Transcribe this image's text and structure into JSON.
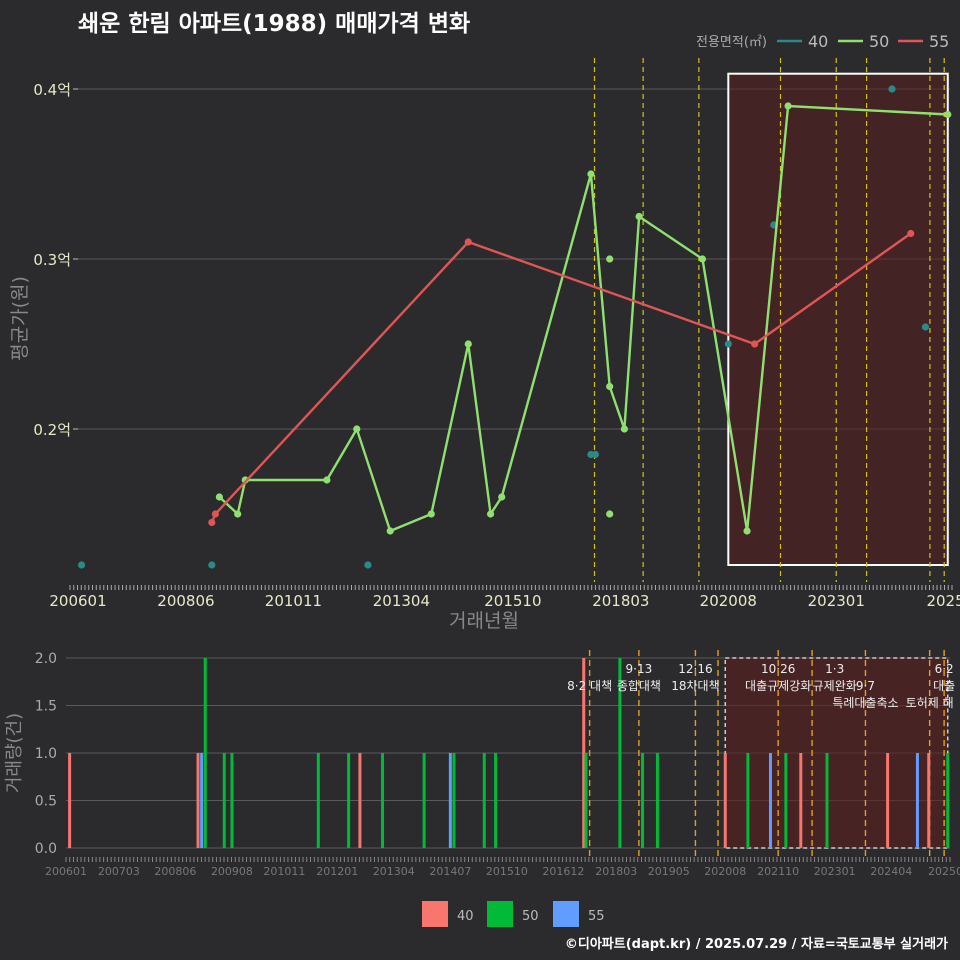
{
  "title": "쇄운 한림 아파트(1988) 매매가격 변화",
  "credit": "©디아파트(dapt.kr) / 2025.07.29 / 자료=국토교통부 실거래가",
  "colors": {
    "40": "#2a8a8a",
    "50": "#90e070",
    "55": "#e05555",
    "bar40": "#f8766d",
    "bar50": "#00ba38",
    "bar55": "#619cff"
  },
  "chart_data": [
    {
      "type": "line",
      "ylabel": "평균가(원)",
      "xlabel": "거래년월",
      "legend_title": "전용면적(㎡)",
      "legend": [
        "40",
        "50",
        "55"
      ],
      "legend_position": "top-right",
      "xlim": [
        2006.0,
        2025.55
      ],
      "ylim": [
        0.11,
        0.42
      ],
      "yticks": [
        {
          "v": 0.2,
          "label": "0.2억"
        },
        {
          "v": 0.3,
          "label": "0.3억"
        },
        {
          "v": 0.4,
          "label": "0.4억"
        }
      ],
      "xticks": [
        {
          "v": 2006.0,
          "label": "200601"
        },
        {
          "v": 2008.42,
          "label": "200806"
        },
        {
          "v": 2010.83,
          "label": "201011"
        },
        {
          "v": 2013.25,
          "label": "201304"
        },
        {
          "v": 2015.75,
          "label": "201510"
        },
        {
          "v": 2018.17,
          "label": "201803"
        },
        {
          "v": 2020.58,
          "label": "202008"
        },
        {
          "v": 2023.0,
          "label": "202301"
        },
        {
          "v": 2025.45,
          "label": "2025"
        }
      ],
      "highlight": {
        "x0": 2020.58,
        "x1": 2025.5,
        "y0": 0.12,
        "y1": 0.409
      },
      "vlines": [
        2017.58,
        2018.67,
        2019.92,
        2021.75,
        2023.0,
        2023.68,
        2025.1,
        2025.42
      ],
      "series": [
        {
          "name": "40",
          "points": [
            [
              2006.08,
              0.12
            ],
            [
              2009.0,
              0.12
            ],
            [
              2012.5,
              0.12
            ],
            [
              2017.5,
              0.185
            ],
            [
              2017.6,
              0.185
            ],
            [
              2020.58,
              0.25
            ],
            [
              2021.6,
              0.32
            ],
            [
              2024.25,
              0.4
            ],
            [
              2025.0,
              0.26
            ]
          ]
        },
        {
          "name": "50",
          "points": [
            [
              2009.17,
              0.16
            ],
            [
              2009.58,
              0.15
            ],
            [
              2009.75,
              0.17
            ],
            [
              2011.58,
              0.17
            ],
            [
              2012.25,
              0.2
            ],
            [
              2013.0,
              0.14
            ],
            [
              2013.92,
              0.15
            ],
            [
              2014.75,
              0.25
            ],
            [
              2015.25,
              0.15
            ],
            [
              2015.5,
              0.16
            ],
            [
              2017.5,
              0.35
            ],
            [
              2017.92,
              0.225
            ],
            [
              2018.25,
              0.2
            ],
            [
              2018.58,
              0.325
            ],
            [
              2020.0,
              0.3
            ],
            [
              2021.0,
              0.14
            ],
            [
              2021.92,
              0.39
            ],
            [
              2025.5,
              0.385
            ]
          ]
        },
        {
          "name": "50_points",
          "points": [
            [
              2017.92,
              0.3
            ],
            [
              2017.92,
              0.15
            ]
          ]
        },
        {
          "name": "55",
          "points": [
            [
              2009.0,
              0.145
            ],
            [
              2009.08,
              0.15
            ],
            [
              2014.75,
              0.31
            ],
            [
              2021.17,
              0.25
            ],
            [
              2024.67,
              0.315
            ]
          ]
        }
      ]
    },
    {
      "type": "bar",
      "ylabel": "거래량(건)",
      "legend": [
        "40",
        "50",
        "55"
      ],
      "legend_position": "bottom",
      "xlim": [
        2006.0,
        2025.55
      ],
      "ylim": [
        0,
        2.0
      ],
      "yticks": [
        {
          "v": 0,
          "label": "0.0"
        },
        {
          "v": 0.5,
          "label": "0.5"
        },
        {
          "v": 1,
          "label": "1.0"
        },
        {
          "v": 1.5,
          "label": "1.5"
        },
        {
          "v": 2,
          "label": "2.0"
        }
      ],
      "xticks": [
        {
          "v": 2006.0,
          "label": "200601"
        },
        {
          "v": 2007.17,
          "label": "200703"
        },
        {
          "v": 2008.42,
          "label": "200806"
        },
        {
          "v": 2009.67,
          "label": "200908"
        },
        {
          "v": 2010.83,
          "label": "201011"
        },
        {
          "v": 2012.0,
          "label": "201201"
        },
        {
          "v": 2013.25,
          "label": "201304"
        },
        {
          "v": 2014.5,
          "label": "201407"
        },
        {
          "v": 2015.75,
          "label": "201510"
        },
        {
          "v": 2017.0,
          "label": "201612"
        },
        {
          "v": 2018.17,
          "label": "201803"
        },
        {
          "v": 2019.33,
          "label": "201905"
        },
        {
          "v": 2020.58,
          "label": "202008"
        },
        {
          "v": 2021.75,
          "label": "202110"
        },
        {
          "v": 2023.0,
          "label": "202301"
        },
        {
          "v": 2024.25,
          "label": "202404"
        },
        {
          "v": 2025.45,
          "label": "20250"
        }
      ],
      "highlight": {
        "x0": 2020.58,
        "x1": 2025.5
      },
      "vlines": [
        2017.58,
        2018.67,
        2019.92,
        2020.42,
        2021.75,
        2022.5,
        2023.68,
        2025.1,
        2025.42
      ],
      "annotations": [
        {
          "x": 2017.58,
          "row": 1,
          "text": "8·2 대책"
        },
        {
          "x": 2018.67,
          "row": 0,
          "text": "9·13"
        },
        {
          "x": 2018.67,
          "row": 1,
          "text": "종합대책"
        },
        {
          "x": 2019.92,
          "row": 0,
          "text": "12·16"
        },
        {
          "x": 2019.92,
          "row": 1,
          "text": "18차대책"
        },
        {
          "x": 2021.75,
          "row": 0,
          "text": "10·26"
        },
        {
          "x": 2021.75,
          "row": 1,
          "text": "대출규제강화"
        },
        {
          "x": 2023.0,
          "row": 0,
          "text": "1·3"
        },
        {
          "x": 2023.0,
          "row": 1,
          "text": "규제완화"
        },
        {
          "x": 2023.68,
          "row": 1,
          "text": "9·7"
        },
        {
          "x": 2023.68,
          "row": 2,
          "text": "특례대출축소"
        },
        {
          "x": 2025.1,
          "row": 2,
          "text": "토허제 해"
        },
        {
          "x": 2025.42,
          "row": 0,
          "text": "6·2"
        },
        {
          "x": 2025.42,
          "row": 1,
          "text": "대출"
        }
      ],
      "bars": [
        {
          "x": 2006.08,
          "count": 1,
          "s": "40"
        },
        {
          "x": 2008.92,
          "count": 1,
          "s": "40"
        },
        {
          "x": 2009.0,
          "count": 1,
          "s": "55"
        },
        {
          "x": 2009.08,
          "count": 2,
          "s": "50"
        },
        {
          "x": 2009.5,
          "count": 1,
          "s": "50"
        },
        {
          "x": 2009.67,
          "count": 1,
          "s": "50"
        },
        {
          "x": 2011.58,
          "count": 1,
          "s": "50"
        },
        {
          "x": 2012.25,
          "count": 1,
          "s": "50"
        },
        {
          "x": 2012.5,
          "count": 1,
          "s": "40"
        },
        {
          "x": 2013.0,
          "count": 1,
          "s": "50"
        },
        {
          "x": 2013.92,
          "count": 1,
          "s": "50"
        },
        {
          "x": 2014.5,
          "count": 1,
          "s": "55"
        },
        {
          "x": 2014.58,
          "count": 1,
          "s": "50"
        },
        {
          "x": 2015.25,
          "count": 1,
          "s": "50"
        },
        {
          "x": 2015.5,
          "count": 1,
          "s": "50"
        },
        {
          "x": 2017.45,
          "count": 2,
          "s": "40"
        },
        {
          "x": 2017.5,
          "count": 1,
          "s": "50"
        },
        {
          "x": 2018.25,
          "count": 2,
          "s": "50"
        },
        {
          "x": 2018.75,
          "count": 1,
          "s": "50"
        },
        {
          "x": 2019.08,
          "count": 1,
          "s": "50"
        },
        {
          "x": 2020.58,
          "count": 1,
          "s": "40"
        },
        {
          "x": 2021.08,
          "count": 1,
          "s": "50"
        },
        {
          "x": 2021.58,
          "count": 1,
          "s": "55"
        },
        {
          "x": 2021.92,
          "count": 1,
          "s": "50"
        },
        {
          "x": 2022.25,
          "count": 1,
          "s": "40"
        },
        {
          "x": 2022.83,
          "count": 1,
          "s": "50"
        },
        {
          "x": 2024.17,
          "count": 1,
          "s": "40"
        },
        {
          "x": 2024.83,
          "count": 1,
          "s": "55"
        },
        {
          "x": 2025.08,
          "count": 1,
          "s": "40"
        },
        {
          "x": 2025.5,
          "count": 1,
          "s": "50"
        }
      ]
    }
  ]
}
